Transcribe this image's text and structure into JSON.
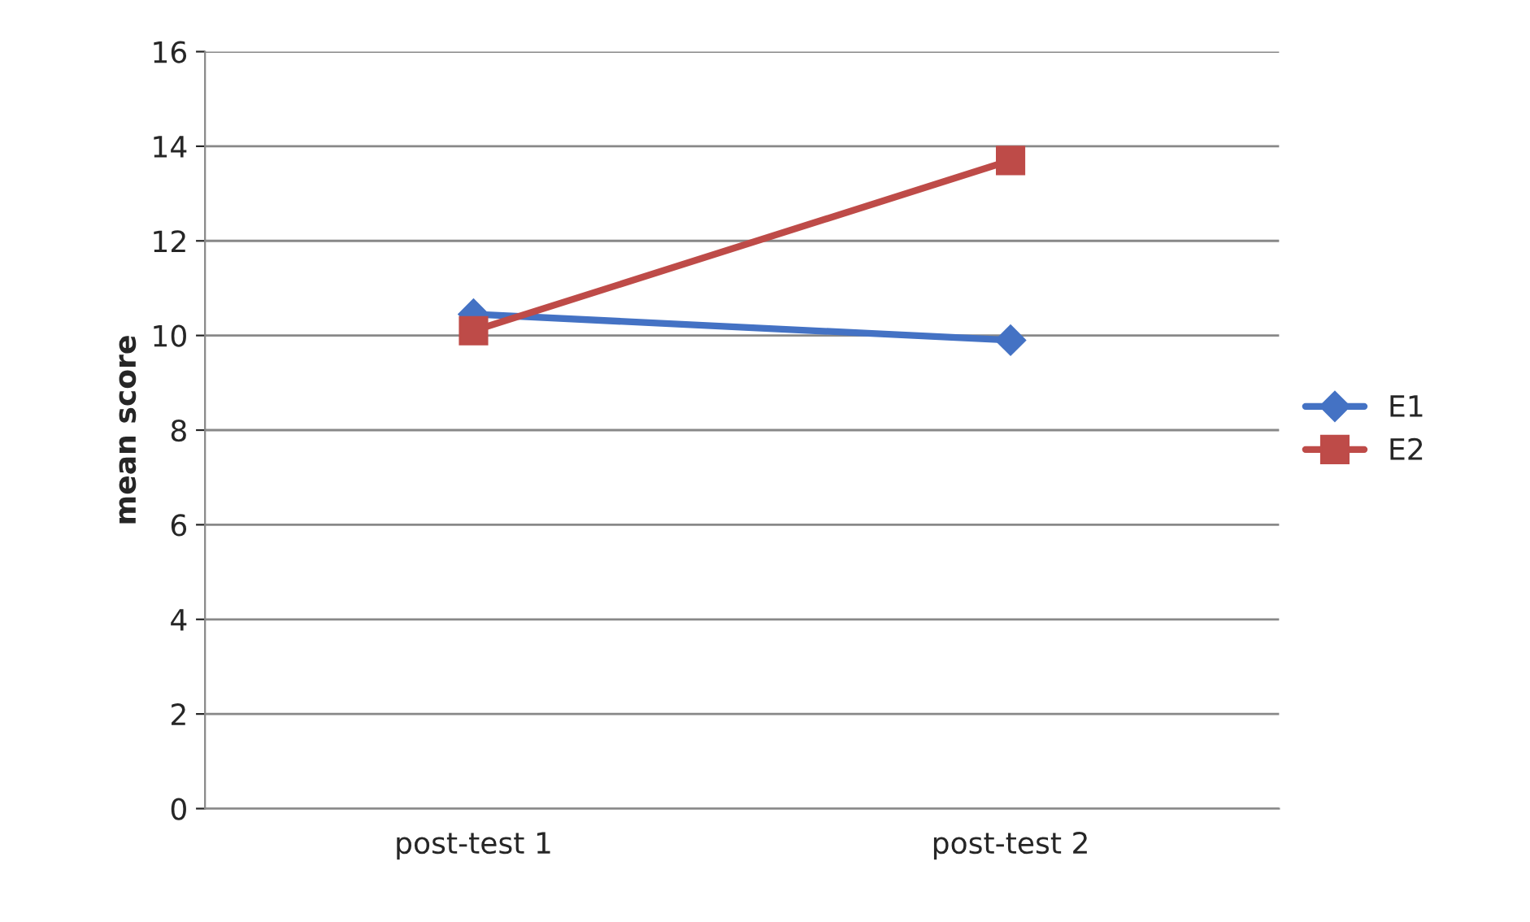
{
  "chart_data": {
    "type": "line",
    "ylabel": "mean score",
    "categories": [
      "post-test 1",
      "post-test 2"
    ],
    "series": [
      {
        "name": "E1",
        "color": "#4472c4",
        "marker": "diamond",
        "values": [
          10.45,
          9.9
        ]
      },
      {
        "name": "E2",
        "color": "#be4b48",
        "marker": "square",
        "values": [
          10.1,
          13.7
        ]
      }
    ],
    "ylim": [
      0,
      16
    ],
    "yticks": [
      0,
      2,
      4,
      6,
      8,
      10,
      12,
      14,
      16
    ],
    "grid": "y",
    "legend": "right"
  }
}
